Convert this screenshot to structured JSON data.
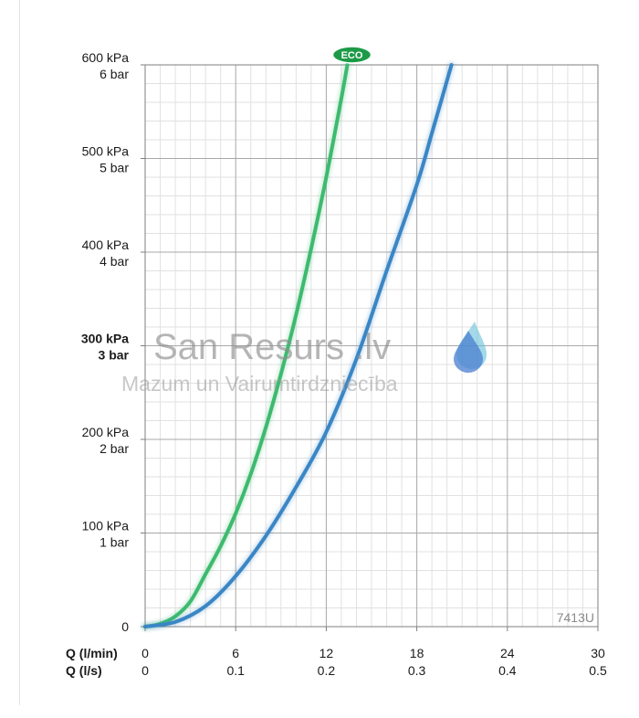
{
  "chart_data": {
    "type": "line",
    "x_primary": {
      "label": "Q (l/min)",
      "ticks": [
        "0",
        "6",
        "12",
        "18",
        "24",
        "30"
      ],
      "range": [
        0,
        30
      ]
    },
    "x_secondary": {
      "label": "Q (l/s)",
      "ticks": [
        "0",
        "0.1",
        "0.2",
        "0.3",
        "0.4",
        "0.5"
      ]
    },
    "y": {
      "range": [
        0,
        600
      ],
      "ticks": [
        {
          "value": 0,
          "kpa": "0",
          "bar": "",
          "bold": false
        },
        {
          "value": 100,
          "kpa": "100 kPa",
          "bar": "1 bar",
          "bold": false
        },
        {
          "value": 200,
          "kpa": "200 kPa",
          "bar": "2 bar",
          "bold": false
        },
        {
          "value": 300,
          "kpa": "300 kPa",
          "bar": "3 bar",
          "bold": true
        },
        {
          "value": 400,
          "kpa": "400 kPa",
          "bar": "4 bar",
          "bold": false
        },
        {
          "value": 500,
          "kpa": "500 kPa",
          "bar": "5 bar",
          "bold": false
        },
        {
          "value": 600,
          "kpa": "600 kPa",
          "bar": "6 bar",
          "bold": false
        }
      ]
    },
    "grid": true,
    "series": [
      {
        "key": "eco",
        "color": "#3dba6f",
        "x": [
          0,
          1,
          2,
          3,
          4,
          5,
          6,
          7,
          8,
          9,
          10,
          11,
          12,
          13,
          13.4
        ],
        "y": [
          0,
          3,
          11,
          27,
          56,
          86,
          121,
          163,
          213,
          270,
          333,
          404,
          480,
          564,
          600
        ]
      },
      {
        "key": "standard",
        "color": "#3a86c5",
        "x": [
          0,
          2,
          4,
          6,
          8,
          10,
          12,
          14,
          16,
          18,
          19,
          20.3
        ],
        "y": [
          0,
          5,
          22,
          54,
          97,
          149,
          208,
          286,
          380,
          472,
          527,
          600
        ]
      }
    ],
    "badge": {
      "text": "ECO",
      "color": "#1d9a47",
      "x": 13.7,
      "y": 600
    },
    "model_label": "7413U"
  },
  "watermark": {
    "title": "San Resurs .lv",
    "subtitle": "Mazum un Vairumtirdzniecība",
    "drop_color": "#4a7fd0",
    "drop_highlight": "#66c0d8"
  }
}
